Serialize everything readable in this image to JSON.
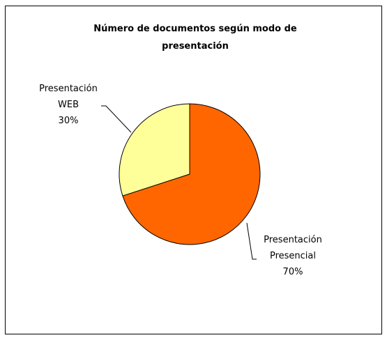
{
  "chart_data": {
    "type": "pie",
    "title": "Número de documentos según modo de presentación",
    "categories": [
      "Presentación WEB",
      "Presentación Presencial"
    ],
    "values": [
      30,
      70
    ],
    "value_labels": [
      "30%",
      "70%"
    ],
    "colors": [
      "#FFFF99",
      "#FF6600"
    ]
  }
}
